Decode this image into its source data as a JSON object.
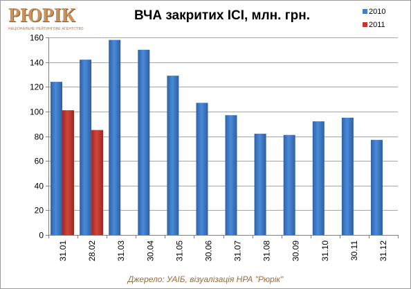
{
  "logo": {
    "text": "РЮРІК",
    "subtext": "НАЦІОНАЛЬНЕ РЕЙТИНГОВЕ АГЕНТСТВО"
  },
  "source": "Джерело: УАІБ, візуалізація НРА \"Рюрік\"",
  "colors": {
    "series_2010": "#3f7fcf",
    "series_2011": "#c0392b"
  },
  "chart_data": {
    "type": "bar",
    "title": "ВЧА закритих ІСІ, млн. грн.",
    "xlabel": "",
    "ylabel": "",
    "ylim": [
      0,
      160
    ],
    "yticks": [
      0,
      20,
      40,
      60,
      80,
      100,
      120,
      140,
      160
    ],
    "grid": true,
    "legend_position": "top-right",
    "categories": [
      "31.01",
      "28.02",
      "31.03",
      "30.04",
      "31.05",
      "30.06",
      "31.07",
      "31.08",
      "30.09",
      "31.10",
      "30.11",
      "31.12"
    ],
    "series": [
      {
        "name": "2010",
        "color": "#3f7fcf",
        "values": [
          124,
          142,
          158,
          150,
          129,
          107,
          97,
          82,
          81,
          92,
          95,
          77
        ]
      },
      {
        "name": "2011",
        "color": "#c0392b",
        "values": [
          101,
          85,
          null,
          null,
          null,
          null,
          null,
          null,
          null,
          null,
          null,
          null
        ]
      }
    ]
  }
}
